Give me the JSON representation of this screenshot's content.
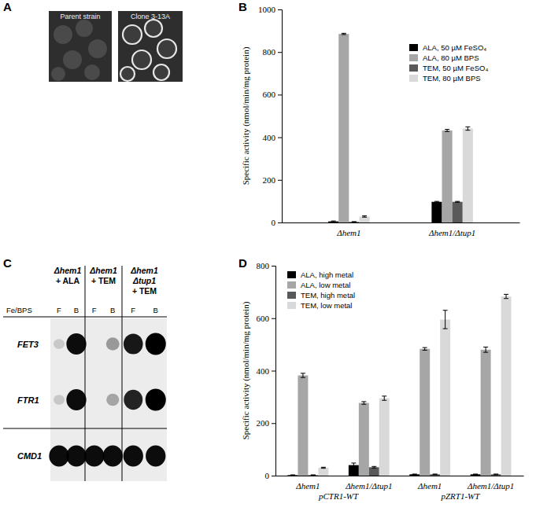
{
  "chart_data": [
    {
      "type": "bar",
      "panel_label": "B",
      "y_label": "Specific activity (nmol/min/mg protein)",
      "categories": [
        "Δhem1",
        "Δhem1/Δtup1"
      ],
      "series": [
        {
          "name": "ALA, 50 µM FeSO₄",
          "color": "#000000",
          "values": [
            5,
            97
          ],
          "errors": [
            2,
            2
          ]
        },
        {
          "name": "ALA, 80 µM BPS",
          "color": "#a6a6a6",
          "values": [
            885,
            432
          ],
          "errors": [
            3,
            5
          ]
        },
        {
          "name": "TEM, 50 µM FeSO₄",
          "color": "#595959",
          "values": [
            3,
            97
          ],
          "errors": [
            1,
            2
          ]
        },
        {
          "name": "TEM, 80 µM BPS",
          "color": "#d9d9d9",
          "values": [
            28,
            441
          ],
          "errors": [
            3,
            8
          ]
        }
      ],
      "ylim": [
        0,
        1000
      ],
      "yticks": [
        0,
        200,
        400,
        600,
        800,
        1000
      ],
      "legend": "upper right"
    },
    {
      "type": "bar",
      "panel_label": "D",
      "y_label": "Specific activity (nmol/min/mg protein)",
      "categories": [
        "Δhem1",
        "Δhem1/Δtup1",
        "Δhem1",
        "Δhem1/Δtup1"
      ],
      "groups": [
        {
          "name": "pCTR1-WT",
          "size": 2
        },
        {
          "name": "pZRT1-WT",
          "size": 2
        }
      ],
      "series": [
        {
          "name": "ALA, high metal",
          "color": "#000000",
          "values": [
            2,
            40,
            5,
            5
          ],
          "errors": [
            1,
            8,
            1,
            1
          ]
        },
        {
          "name": "ALA, low metal",
          "color": "#a6a6a6",
          "values": [
            382,
            277,
            483,
            480
          ],
          "errors": [
            8,
            5,
            5,
            10
          ]
        },
        {
          "name": "TEM, high metal",
          "color": "#595959",
          "values": [
            2,
            32,
            5,
            5
          ],
          "errors": [
            1,
            3,
            1,
            1
          ]
        },
        {
          "name": "TEM, low metal",
          "color": "#d9d9d9",
          "values": [
            30,
            295,
            595,
            683
          ],
          "errors": [
            2,
            8,
            35,
            8
          ]
        }
      ],
      "ylim": [
        0,
        800
      ],
      "yticks": [
        0,
        200,
        400,
        600,
        800
      ],
      "legend": "upper left"
    }
  ],
  "panel_a": {
    "panel_label": "A",
    "images": [
      {
        "caption": "Parent strain"
      },
      {
        "caption": "Clone 3-13A"
      }
    ]
  },
  "panel_c": {
    "panel_label": "C",
    "lanes": [
      {
        "header": [
          "Δhem1",
          "+ ALA"
        ]
      },
      {
        "header": [
          "Δhem1",
          "+ TEM"
        ]
      },
      {
        "header": [
          "Δhem1",
          "Δtup1",
          "+ TEM"
        ]
      }
    ],
    "condition_label": "Fe/BPS",
    "conditions": [
      "F",
      "B"
    ],
    "genes": [
      {
        "name": "FET3",
        "bands": [
          0.15,
          0.95,
          0.0,
          0.35,
          0.9,
          1.0
        ]
      },
      {
        "name": "FTR1",
        "bands": [
          0.15,
          0.95,
          0.0,
          0.3,
          0.85,
          1.0
        ]
      },
      {
        "name": "CMD1",
        "bands": [
          0.95,
          0.95,
          0.95,
          0.95,
          0.95,
          0.95
        ]
      }
    ]
  }
}
